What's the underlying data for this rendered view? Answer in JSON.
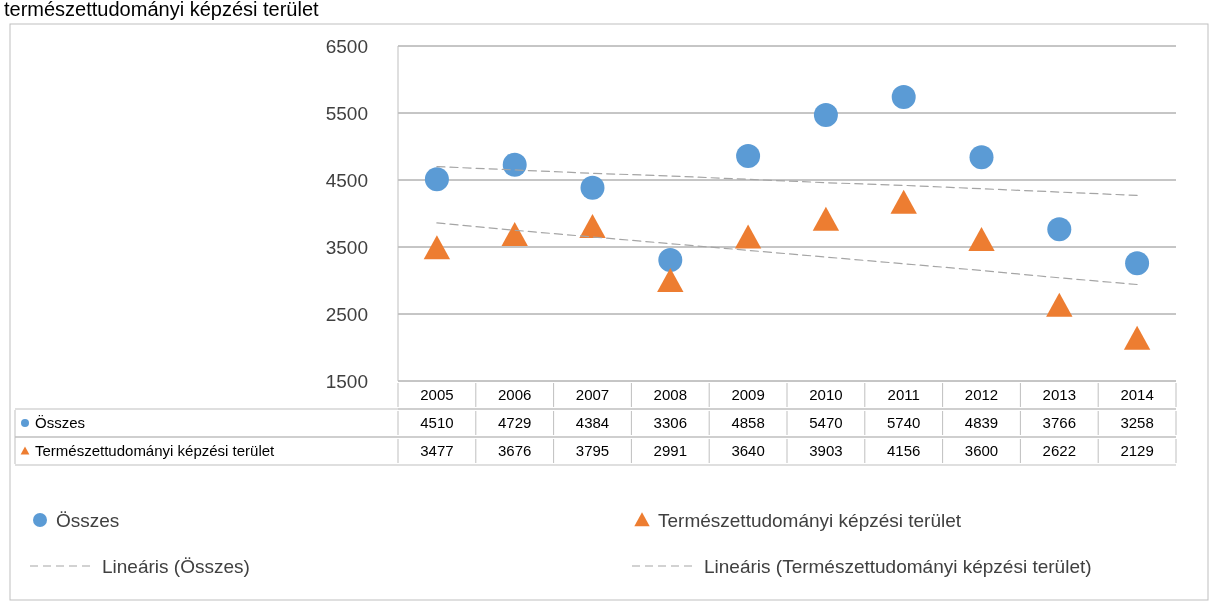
{
  "chart_data": {
    "type": "scatter",
    "title": "természettudományi képzési terület",
    "categories": [
      "2005",
      "2006",
      "2007",
      "2008",
      "2009",
      "2010",
      "2011",
      "2012",
      "2013",
      "2014"
    ],
    "series": [
      {
        "name": "Összes",
        "color": "#5b9bd5",
        "marker": "circle",
        "values": [
          4510,
          4729,
          4384,
          3306,
          4858,
          5470,
          5740,
          4839,
          3766,
          3258
        ],
        "value_labels": [
          "4510",
          "4729",
          "4384",
          "3306",
          "4858",
          "5470",
          "5740",
          "4839",
          "3766",
          "3258"
        ]
      },
      {
        "name": "Természettudományi képzési terület",
        "color": "#ed7d31",
        "marker": "triangle",
        "values": [
          3477,
          3676,
          3795,
          2991,
          3640,
          3903,
          4156,
          3600,
          2622,
          2129
        ],
        "value_labels": [
          "3477",
          "3676",
          "3795",
          "2991",
          "3640",
          "3903",
          "4156",
          "3600",
          "2622",
          "2129"
        ]
      },
      {
        "name": "Lineáris (Összes)",
        "type": "line",
        "color": "#a5a5a5",
        "line_style": "dashed",
        "marker": "none",
        "values": [
          4700,
          4650,
          4600,
          4560,
          4510,
          4460,
          4420,
          4370,
          4320,
          4270
        ]
      },
      {
        "name": "Lineáris (Természettudományi képzési terület)",
        "type": "line",
        "color": "#a5a5a5",
        "line_style": "dashed",
        "marker": "none",
        "values": [
          3860,
          3750,
          3650,
          3550,
          3450,
          3350,
          3250,
          3150,
          3040,
          2940
        ]
      }
    ],
    "ylim": [
      1500,
      6500
    ],
    "yticks": [
      1500,
      2500,
      3500,
      4500,
      5500,
      6500
    ],
    "grid": "y",
    "legend": "bottom"
  }
}
